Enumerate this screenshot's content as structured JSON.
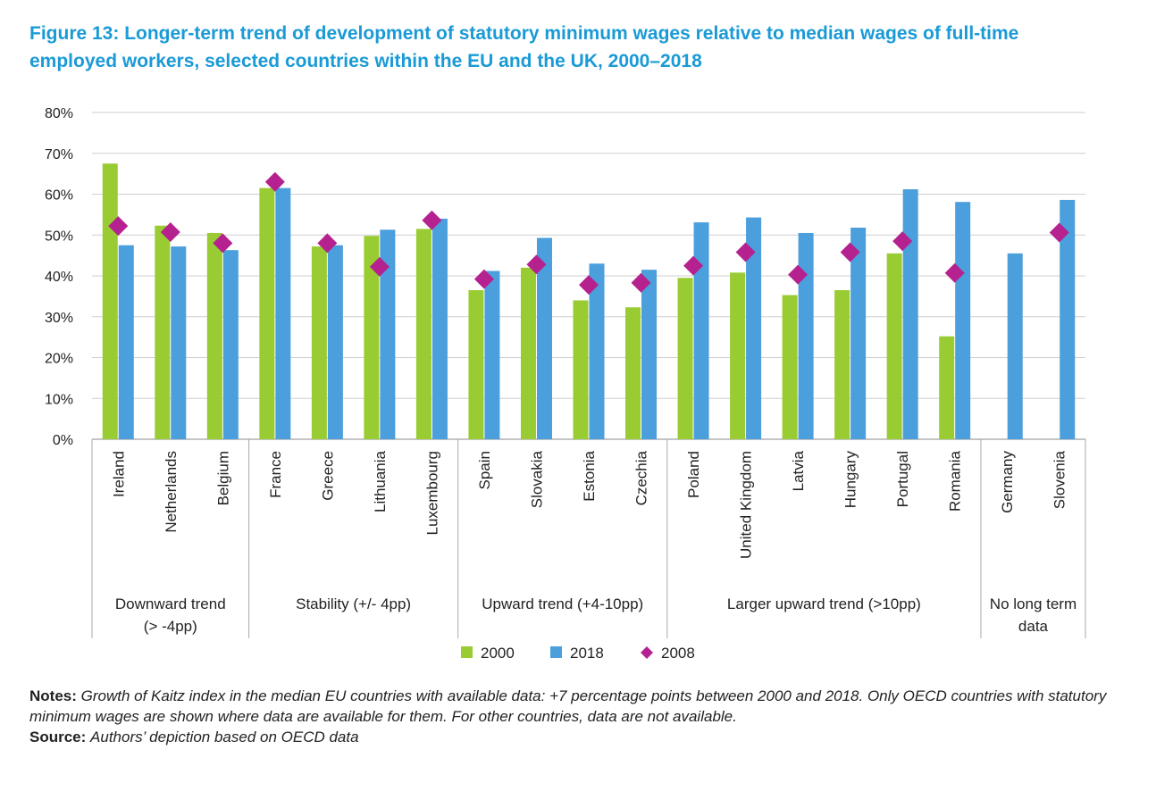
{
  "figure_title": "Figure 13: Longer-term trend of development of statutory minimum wages relative to median wages of full-time employed workers, selected countries within the EU and the UK, 2000–2018",
  "colors": {
    "title": "#1a9ad6",
    "series_2000": "#99cc33",
    "series_2018": "#4a9fdc",
    "series_2008": "#b5218f"
  },
  "chart_data": {
    "type": "bar",
    "ylim": [
      0,
      80
    ],
    "yticks": [
      0,
      10,
      20,
      30,
      40,
      50,
      60,
      70,
      80
    ],
    "ytick_labels": [
      "0%",
      "10%",
      "20%",
      "30%",
      "40%",
      "50%",
      "60%",
      "70%",
      "80%"
    ],
    "grid": true,
    "legend_position": "bottom",
    "categories": [
      "Ireland",
      "Netherlands",
      "Belgium",
      "France",
      "Greece",
      "Lithuania",
      "Luxembourg",
      "Spain",
      "Slovakia",
      "Estonia",
      "Czechia",
      "Poland",
      "United Kingdom",
      "Latvia",
      "Hungary",
      "Portugal",
      "Romania",
      "Germany",
      "Slovenia"
    ],
    "groups": [
      {
        "label": "Downward trend (> -4pp)",
        "label_lines": [
          "Downward trend",
          "(> -4pp)"
        ],
        "count": 3
      },
      {
        "label": "Stability (+/- 4pp)",
        "label_lines": [
          "Stability (+/- 4pp)"
        ],
        "count": 4
      },
      {
        "label": "Upward trend (+4-10pp)",
        "label_lines": [
          "Upward trend (+4-10pp)"
        ],
        "count": 4
      },
      {
        "label": "Larger upward trend (>10pp)",
        "label_lines": [
          "Larger upward trend (>10pp)"
        ],
        "count": 6
      },
      {
        "label": "No long term data",
        "label_lines": [
          "No long term",
          "data"
        ],
        "count": 2
      }
    ],
    "series": [
      {
        "name": "2000",
        "type": "bar",
        "values": [
          67.5,
          52.3,
          50.5,
          61.5,
          47.2,
          49.8,
          51.5,
          36.5,
          42.0,
          34.0,
          32.3,
          39.5,
          40.8,
          35.3,
          36.5,
          45.5,
          25.2,
          null,
          null
        ]
      },
      {
        "name": "2018",
        "type": "bar",
        "values": [
          47.5,
          47.2,
          46.3,
          61.5,
          47.5,
          51.3,
          54.0,
          41.2,
          49.3,
          43.0,
          41.5,
          53.1,
          54.3,
          50.5,
          51.8,
          61.2,
          58.1,
          45.5,
          58.6
        ]
      },
      {
        "name": "2008",
        "type": "marker",
        "values": [
          52.2,
          50.7,
          48.0,
          63.0,
          48.0,
          42.2,
          53.6,
          39.2,
          42.8,
          37.8,
          38.3,
          42.5,
          45.8,
          40.3,
          45.8,
          48.5,
          40.7,
          null,
          50.6
        ]
      }
    ]
  },
  "notes": {
    "notes_label": "Notes:",
    "notes_text": "Growth of Kaitz index in the median EU countries with available data: +7 percentage points between 2000 and 2018. Only OECD countries with statutory minimum wages are shown where data are available for them. For other countries, data are not available.",
    "source_label": "Source:",
    "source_text": "Authors’ depiction based on OECD data"
  }
}
